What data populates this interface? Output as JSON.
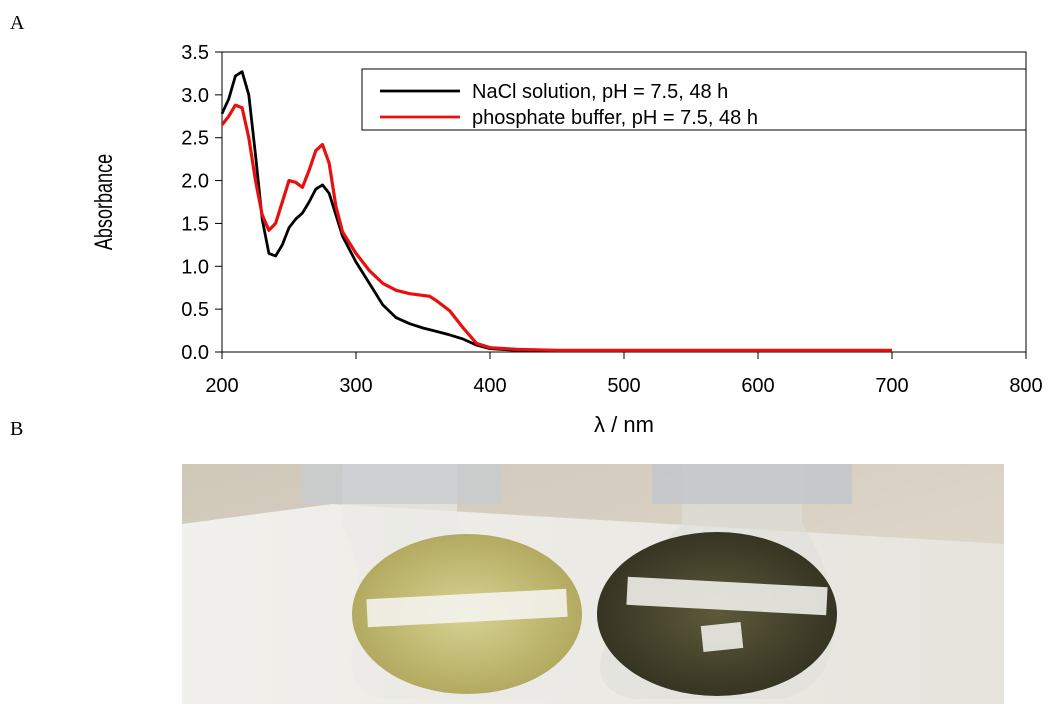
{
  "panels": {
    "a": "A",
    "b": "B"
  },
  "chart_data": {
    "type": "line",
    "title": "",
    "xlabel": "λ / nm",
    "ylabel": "Absorbance",
    "xlim": [
      200,
      800
    ],
    "ylim": [
      0.0,
      3.5
    ],
    "xticks": [
      "200",
      "300",
      "400",
      "500",
      "600",
      "700",
      "800"
    ],
    "yticks": [
      "0.0",
      "0.5",
      "1.0",
      "1.5",
      "2.0",
      "2.5",
      "3.0",
      "3.5"
    ],
    "grid": false,
    "legend_position": "top-right",
    "series": [
      {
        "name": "NaCl solution, pH = 7.5, 48 h",
        "color": "#000000",
        "x": [
          200,
          205,
          210,
          215,
          220,
          225,
          230,
          235,
          240,
          245,
          250,
          255,
          260,
          265,
          270,
          275,
          280,
          285,
          290,
          300,
          310,
          320,
          330,
          340,
          350,
          360,
          370,
          380,
          390,
          400,
          420,
          450,
          500,
          550,
          600,
          650,
          700
        ],
        "y": [
          2.78,
          2.95,
          3.22,
          3.27,
          3.0,
          2.3,
          1.55,
          1.15,
          1.12,
          1.25,
          1.45,
          1.55,
          1.62,
          1.75,
          1.9,
          1.95,
          1.85,
          1.6,
          1.35,
          1.05,
          0.8,
          0.55,
          0.4,
          0.33,
          0.28,
          0.24,
          0.2,
          0.15,
          0.08,
          0.04,
          0.02,
          0.01,
          0.01,
          0.01,
          0.01,
          0.01,
          0.01
        ]
      },
      {
        "name": "phosphate buffer, pH = 7.5, 48 h",
        "color": "#e8100f",
        "x": [
          200,
          205,
          210,
          215,
          220,
          225,
          230,
          235,
          240,
          245,
          250,
          255,
          260,
          265,
          270,
          275,
          280,
          285,
          290,
          300,
          310,
          320,
          330,
          340,
          350,
          355,
          360,
          370,
          380,
          390,
          400,
          420,
          450,
          500,
          550,
          600,
          650,
          700
        ],
        "y": [
          2.65,
          2.75,
          2.88,
          2.85,
          2.5,
          2.0,
          1.6,
          1.42,
          1.5,
          1.75,
          2.0,
          1.98,
          1.92,
          2.12,
          2.35,
          2.42,
          2.2,
          1.7,
          1.4,
          1.15,
          0.95,
          0.8,
          0.72,
          0.68,
          0.66,
          0.65,
          0.6,
          0.48,
          0.28,
          0.1,
          0.05,
          0.03,
          0.02,
          0.02,
          0.02,
          0.02,
          0.02,
          0.02
        ]
      }
    ]
  },
  "photo": {
    "description_icon": "flask-photo-icon",
    "left_flask_label": "",
    "right_flask_label": ""
  }
}
